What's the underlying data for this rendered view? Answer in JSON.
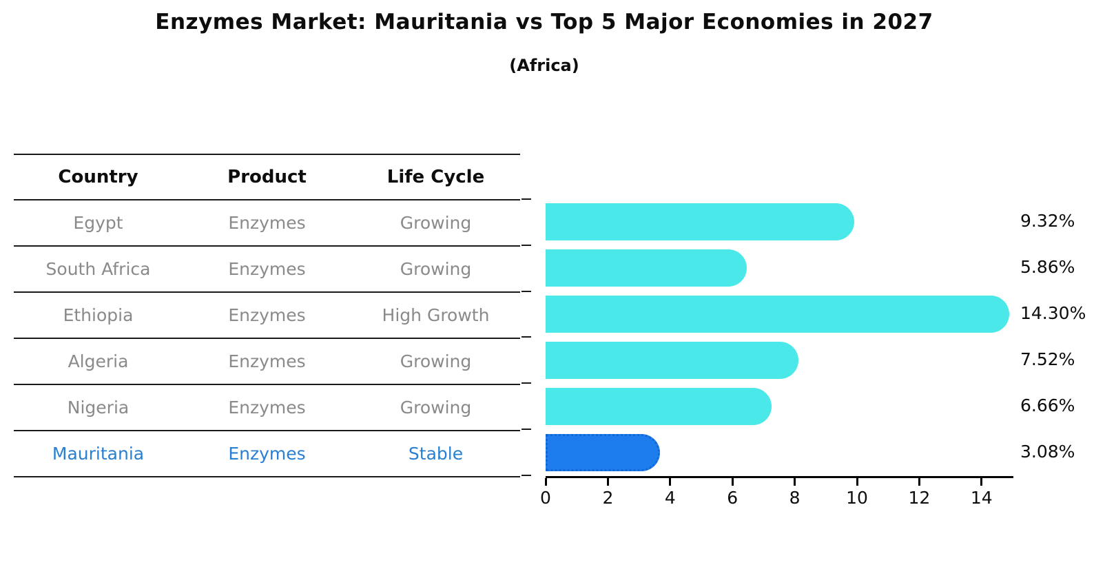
{
  "title": "Enzymes Market: Mauritania vs Top 5 Major Economies in 2027",
  "subtitle": "(Africa)",
  "table": {
    "headers": [
      "Country",
      "Product",
      "Life Cycle"
    ],
    "rows": [
      {
        "country": "Egypt",
        "product": "Enzymes",
        "life_cycle": "Growing",
        "highlight": false
      },
      {
        "country": "South Africa",
        "product": "Enzymes",
        "life_cycle": "Growing",
        "highlight": false
      },
      {
        "country": "Ethiopia",
        "product": "Enzymes",
        "life_cycle": "High Growth",
        "highlight": false
      },
      {
        "country": "Algeria",
        "product": "Enzymes",
        "life_cycle": "Growing",
        "highlight": false
      },
      {
        "country": "Nigeria",
        "product": "Enzymes",
        "life_cycle": "Growing",
        "highlight": false
      },
      {
        "country": "Mauritania",
        "product": "Enzymes",
        "life_cycle": "Stable",
        "highlight": true
      }
    ]
  },
  "chart_data": {
    "type": "bar",
    "orientation": "horizontal",
    "title": "Enzymes Market: Mauritania vs Top 5 Major Economies in 2027",
    "subtitle": "(Africa)",
    "categories": [
      "Egypt",
      "South Africa",
      "Ethiopia",
      "Algeria",
      "Nigeria",
      "Mauritania"
    ],
    "values": [
      9.32,
      5.86,
      14.3,
      7.52,
      6.66,
      3.08
    ],
    "value_labels": [
      "9.32%",
      "5.86%",
      "14.30%",
      "7.52%",
      "6.66%",
      "3.08%"
    ],
    "xlabel": "",
    "ylabel": "",
    "xlim": [
      0,
      15
    ],
    "xticks": [
      0,
      2,
      4,
      6,
      8,
      10,
      12,
      14
    ],
    "grid": false,
    "legend": "none",
    "bar_color": "#4ae8e8",
    "highlight_color": "#1d7ded",
    "highlight_index": 5
  },
  "colors": {
    "highlight_text": "#2980d2",
    "muted_text": "#8a8a8a",
    "axis": "#000000"
  }
}
